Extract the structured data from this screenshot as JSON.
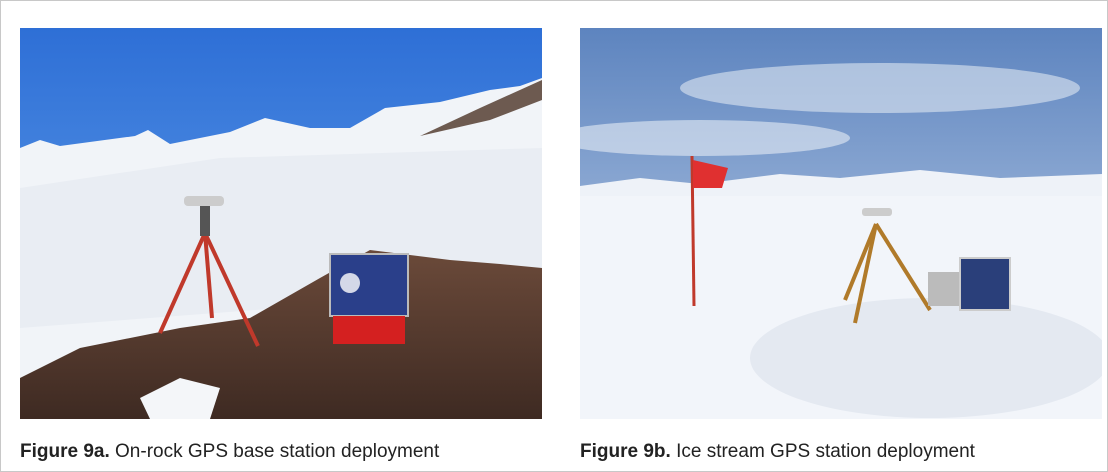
{
  "figures": [
    {
      "label": "Figure 9a.",
      "caption": "On-rock GPS base station deployment"
    },
    {
      "label": "Figure 9b.",
      "caption": "Ice stream GPS station deployment"
    }
  ]
}
